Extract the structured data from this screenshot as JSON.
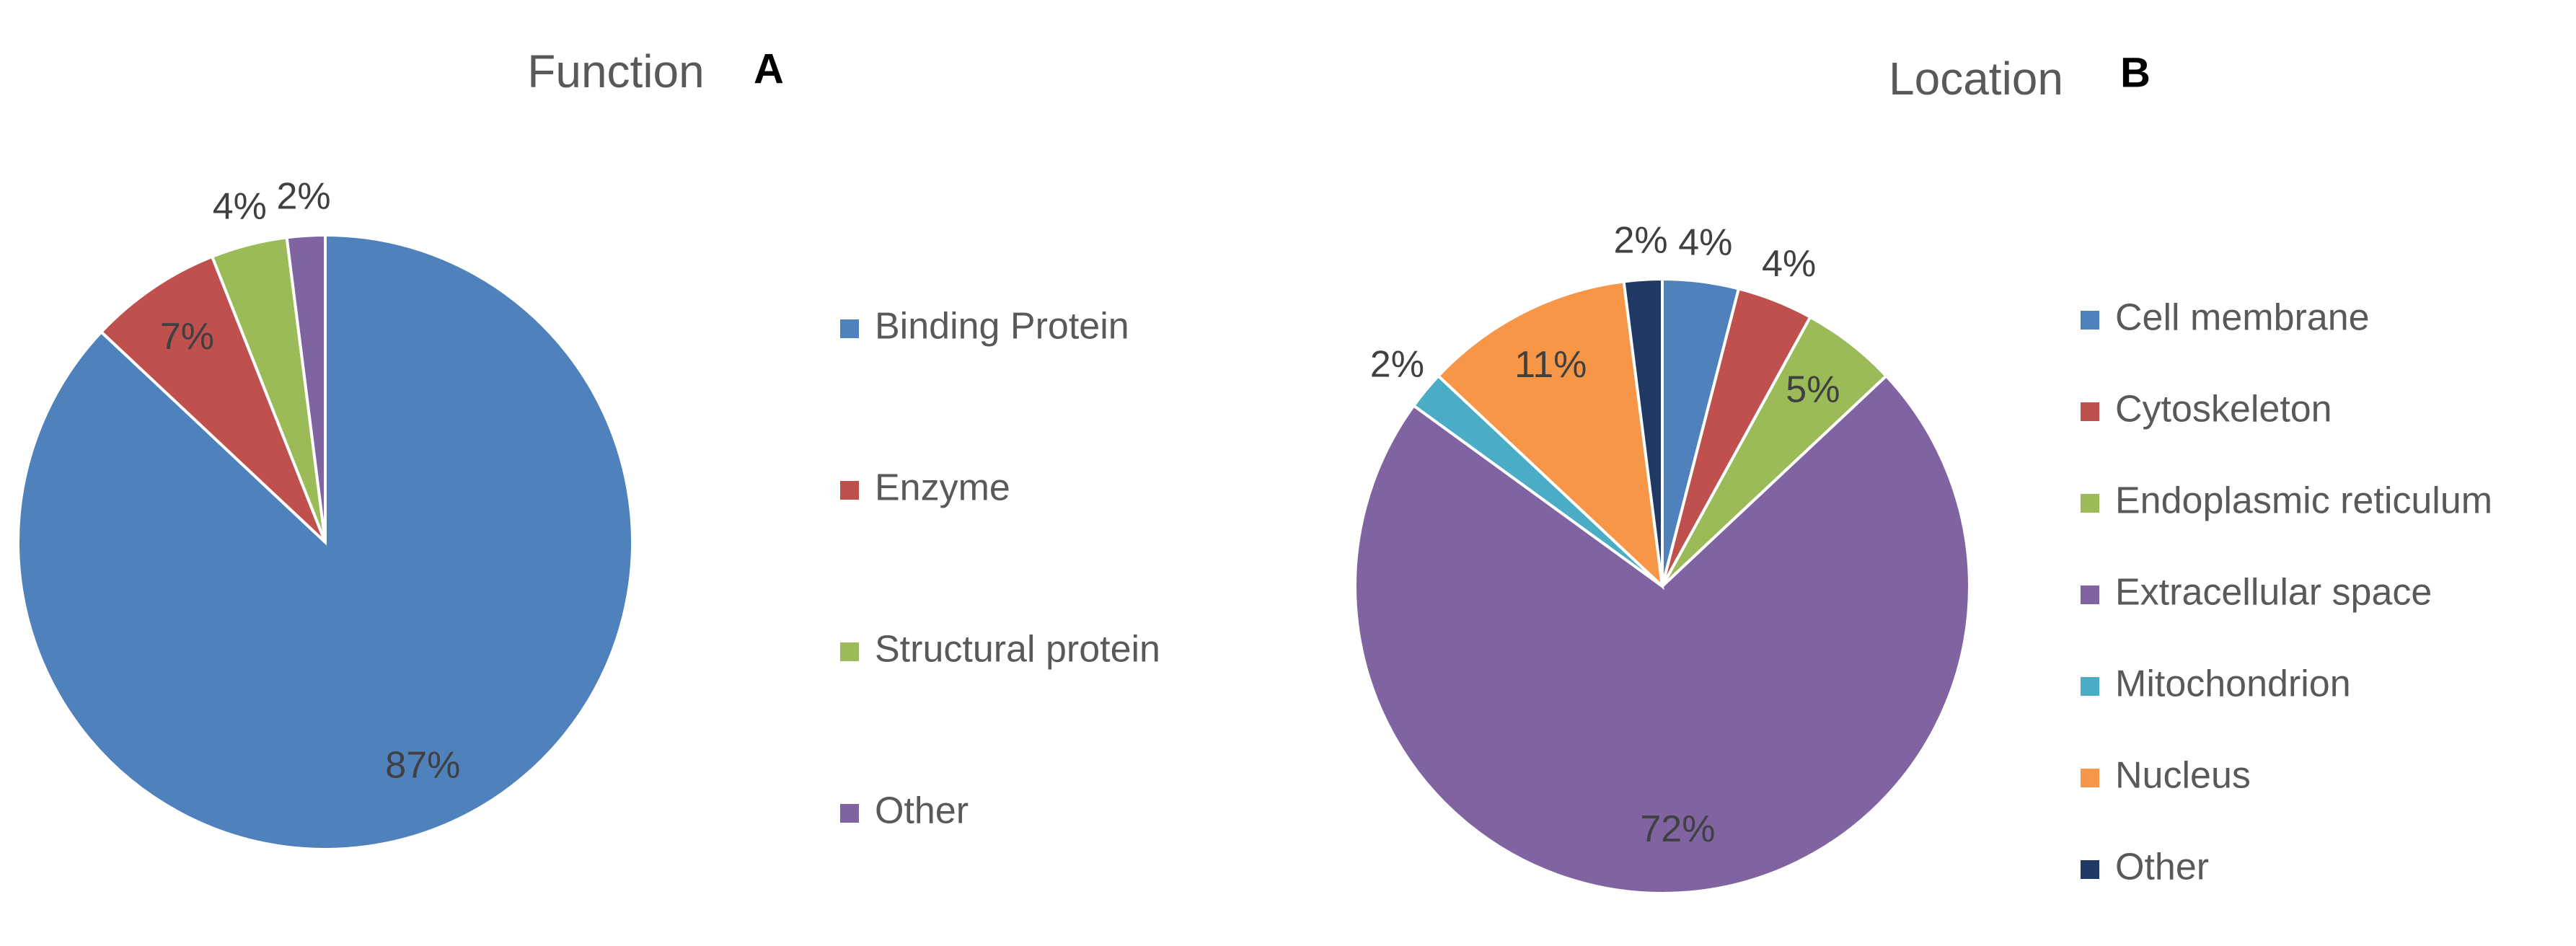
{
  "chart_data": [
    {
      "type": "pie",
      "title": "Function",
      "panel_label": "A",
      "categories": [
        "Binding Protein",
        "Enzyme",
        "Structural protein",
        "Other"
      ],
      "values": [
        87,
        7,
        4,
        2
      ],
      "value_labels": [
        "87%",
        "7%",
        "4%",
        "2%"
      ],
      "colors": [
        "#4f81bd",
        "#c0504d",
        "#9bbb59",
        "#8064a2"
      ],
      "legend": "right"
    },
    {
      "type": "pie",
      "title": "Location",
      "panel_label": "B",
      "categories": [
        "Cell membrane",
        "Cytoskeleton",
        "Endoplasmic reticulum",
        "Extracellular space",
        "Mitochondrion",
        "Nucleus",
        "Other"
      ],
      "values": [
        4,
        4,
        5,
        72,
        2,
        11,
        2
      ],
      "value_labels": [
        "4%",
        "4%",
        "5%",
        "72%",
        "2%",
        "11%",
        "2%"
      ],
      "colors": [
        "#4f81bd",
        "#c0504d",
        "#9bbb59",
        "#8064a2",
        "#4bacc6",
        "#f79646",
        "#1f3864"
      ],
      "legend": "right"
    }
  ]
}
